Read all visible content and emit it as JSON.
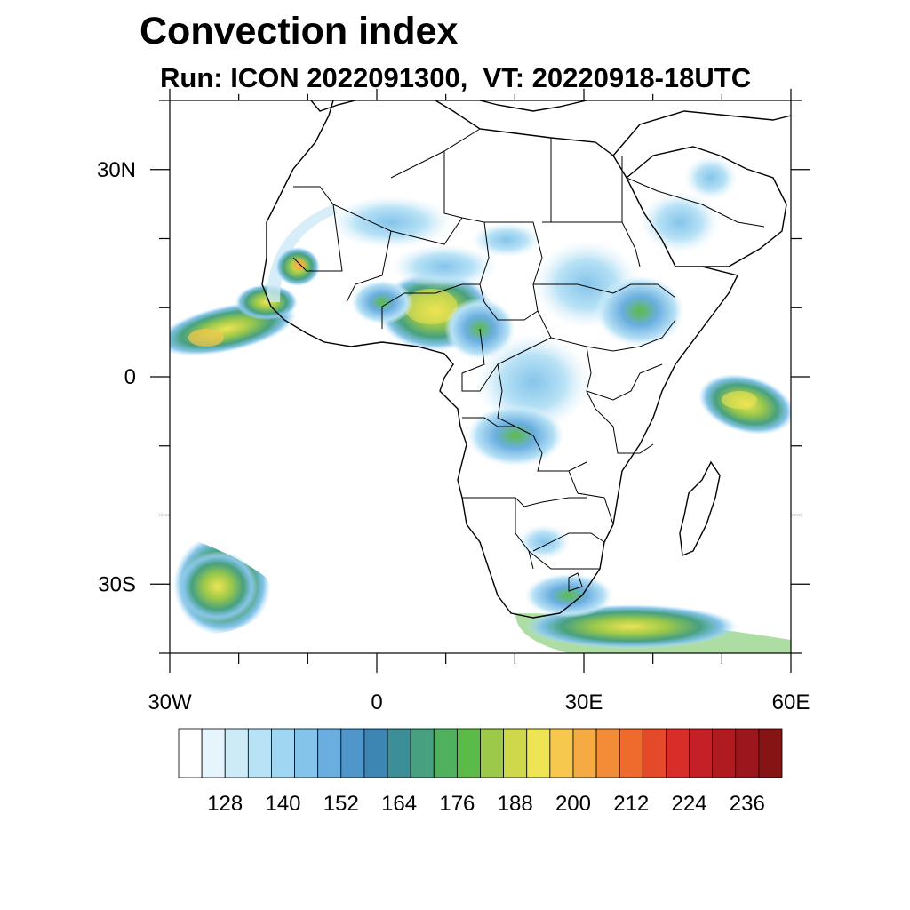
{
  "title": "Convection index",
  "subtitle": "Run: ICON 2022091300,  VT: 20220918-18UTC",
  "map": {
    "lon_range": [
      -30,
      60
    ],
    "lat_range": [
      -40,
      40
    ],
    "lat_ticks": [
      {
        "value": 30,
        "label": "30N"
      },
      {
        "value": 0,
        "label": "0"
      },
      {
        "value": -30,
        "label": "30S"
      }
    ],
    "lon_ticks": [
      {
        "value": -30,
        "label": "30W"
      },
      {
        "value": 0,
        "label": "0"
      },
      {
        "value": 30,
        "label": "30E"
      },
      {
        "value": 60,
        "label": "60E"
      }
    ]
  },
  "colorbar": {
    "colors": [
      "#ffffff",
      "#e6f4fb",
      "#cdeaf7",
      "#b8e2f6",
      "#a0d6f2",
      "#85c4ea",
      "#6aaee0",
      "#5096cb",
      "#3d86b3",
      "#3c8f96",
      "#47a080",
      "#4fb05d",
      "#5cbb48",
      "#9cc94a",
      "#cfd84a",
      "#eee454",
      "#f6c84e",
      "#f5aa42",
      "#f28c36",
      "#ee6a2d",
      "#e44a2a",
      "#d82e2a",
      "#c52027",
      "#b01b22",
      "#9c171d",
      "#861415"
    ],
    "labels": [
      "128",
      "140",
      "152",
      "164",
      "176",
      "188",
      "200",
      "212",
      "224",
      "236"
    ]
  }
}
